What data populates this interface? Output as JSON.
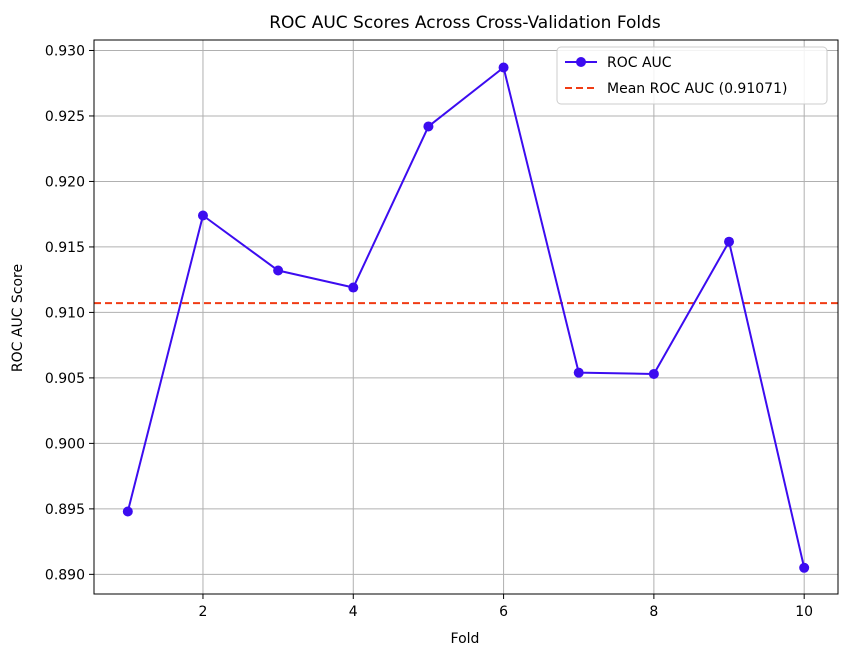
{
  "chart_data": {
    "type": "line",
    "title": "ROC AUC Scores Across Cross-Validation Folds",
    "xlabel": "Fold",
    "ylabel": "ROC AUC Score",
    "xlim": [
      0.55,
      10.45
    ],
    "ylim": [
      0.8885,
      0.9308
    ],
    "xticks": [
      2,
      4,
      6,
      8,
      10
    ],
    "xtick_labels": [
      "2",
      "4",
      "6",
      "8",
      "10"
    ],
    "yticks": [
      0.89,
      0.895,
      0.9,
      0.905,
      0.91,
      0.915,
      0.92,
      0.925,
      0.93
    ],
    "ytick_labels": [
      "0.890",
      "0.895",
      "0.900",
      "0.905",
      "0.910",
      "0.915",
      "0.920",
      "0.925",
      "0.930"
    ],
    "grid": true,
    "series": [
      {
        "name": "ROC AUC",
        "x": [
          1,
          2,
          3,
          4,
          5,
          6,
          7,
          8,
          9,
          10
        ],
        "values": [
          0.8948,
          0.9174,
          0.9132,
          0.9119,
          0.9242,
          0.9287,
          0.9054,
          0.9053,
          0.9154,
          0.8905
        ],
        "color": "#3c0cf0",
        "style": "solid",
        "marker": "circle"
      }
    ],
    "reference_lines": [
      {
        "name": "Mean ROC AUC (0.91071)",
        "y": 0.91071,
        "color": "#f03c14",
        "style": "dashed"
      }
    ],
    "legend": {
      "placement": "top-right",
      "entries": [
        "ROC AUC",
        "Mean ROC AUC (0.91071)"
      ]
    }
  }
}
